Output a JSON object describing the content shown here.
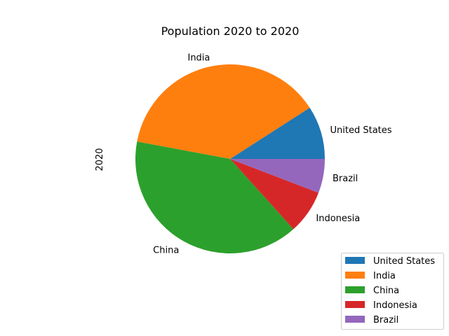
{
  "chart_data": {
    "type": "pie",
    "title": "Population 2020 to 2020",
    "ylabel": "2020",
    "categories": [
      "United States",
      "India",
      "China",
      "Indonesia",
      "Brazil"
    ],
    "values": [
      331,
      1380,
      1439,
      273,
      212
    ],
    "colors": [
      "#1f77b4",
      "#ff7f0e",
      "#2ca02c",
      "#d62728",
      "#9467bd"
    ],
    "start_angle_deg": 0,
    "direction": "counterclockwise",
    "legend_position": "bottom-right"
  }
}
